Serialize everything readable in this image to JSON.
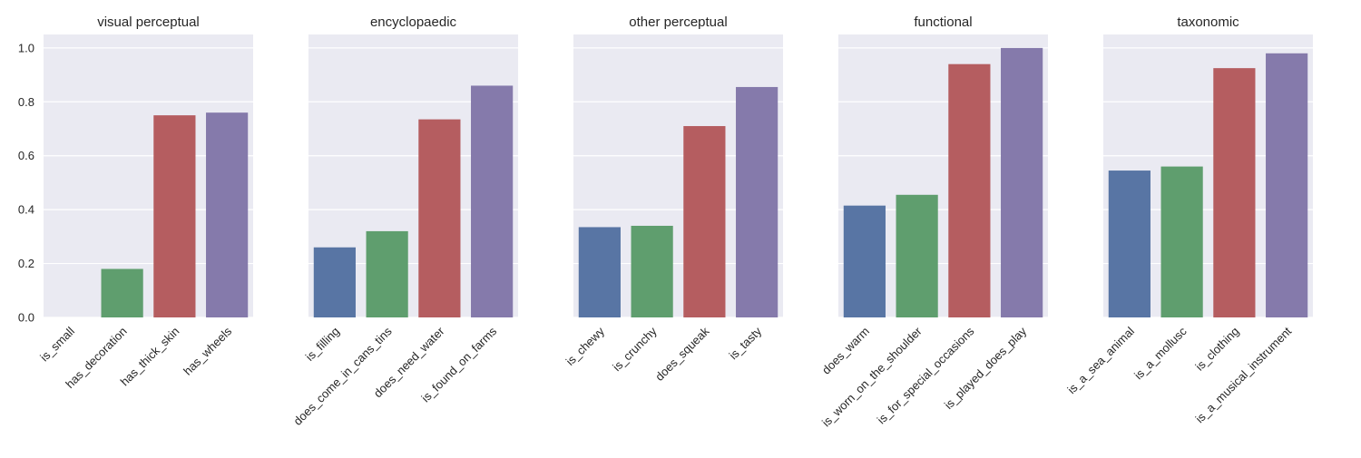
{
  "colors": {
    "panel_background": "#eaeaf2",
    "grid": "#ffffff",
    "bar_colors": [
      "#5875a4",
      "#5f9e6e",
      "#b55d60",
      "#857aab"
    ]
  },
  "chart_data": [
    {
      "type": "bar",
      "title": "visual perceptual",
      "categories": [
        "is_small",
        "has_decoration",
        "has_thick_skin",
        "has_wheels"
      ],
      "values": [
        0.0,
        0.18,
        0.75,
        0.76
      ],
      "ylim": [
        0,
        1.05
      ],
      "yticks": [
        "0.0",
        "0.2",
        "0.4",
        "0.6",
        "0.8",
        "1.0"
      ],
      "grid": true
    },
    {
      "type": "bar",
      "title": "encyclopaedic",
      "categories": [
        "is_filling",
        "does_come_in_cans_tins",
        "does_need_water",
        "is_found_on_farms"
      ],
      "values": [
        0.26,
        0.32,
        0.735,
        0.86
      ],
      "ylim": [
        0,
        1.05
      ],
      "grid": true
    },
    {
      "type": "bar",
      "title": "other perceptual",
      "categories": [
        "is_chewy",
        "is_crunchy",
        "does_squeak",
        "is_tasty"
      ],
      "values": [
        0.335,
        0.34,
        0.71,
        0.855
      ],
      "ylim": [
        0,
        1.05
      ],
      "grid": true
    },
    {
      "type": "bar",
      "title": "functional",
      "categories": [
        "does_warm",
        "is_worn_on_the_shoulder",
        "is_for_special_occasions",
        "is_played_does_play"
      ],
      "values": [
        0.415,
        0.455,
        0.94,
        1.0
      ],
      "ylim": [
        0,
        1.05
      ],
      "grid": true
    },
    {
      "type": "bar",
      "title": "taxonomic",
      "categories": [
        "is_a_sea_animal",
        "is_a_mollusc",
        "is_clothing",
        "is_a_musical_instrument"
      ],
      "values": [
        0.545,
        0.56,
        0.925,
        0.98
      ],
      "ylim": [
        0,
        1.05
      ],
      "grid": true
    }
  ]
}
